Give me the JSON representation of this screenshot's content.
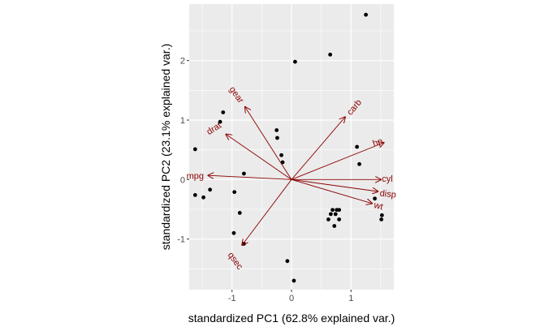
{
  "chart_data": {
    "type": "scatter",
    "subtype": "pca-biplot",
    "title": "",
    "xlabel": "standardized PC1 (62.8% explained var.)",
    "ylabel": "standardized PC2 (23.1% explained var.)",
    "xlim": [
      -1.72,
      1.72
    ],
    "ylim": [
      -1.85,
      2.95
    ],
    "xticks": [
      -1,
      0,
      1
    ],
    "xtick_labels": [
      "-1",
      "0",
      "1"
    ],
    "yticks": [
      -1,
      0,
      1,
      2
    ],
    "ytick_labels": [
      "-1",
      "0",
      "1",
      "2"
    ],
    "panel_background": "#ebebeb",
    "grid_color": "#ffffff",
    "point_color": "#000000",
    "arrow_color": "#8b0000",
    "points": [
      {
        "x": 1.25,
        "y": 2.77
      },
      {
        "x": 0.06,
        "y": 1.98
      },
      {
        "x": 0.65,
        "y": 2.1
      },
      {
        "x": -1.15,
        "y": 1.13
      },
      {
        "x": -1.2,
        "y": 0.97
      },
      {
        "x": -0.25,
        "y": 0.83
      },
      {
        "x": -0.24,
        "y": 0.7
      },
      {
        "x": -1.62,
        "y": 0.51
      },
      {
        "x": -0.17,
        "y": 0.41
      },
      {
        "x": -0.15,
        "y": 0.29
      },
      {
        "x": 1.1,
        "y": 0.55
      },
      {
        "x": 1.14,
        "y": 0.26
      },
      {
        "x": -0.8,
        "y": 0.1
      },
      {
        "x": -1.62,
        "y": -0.26
      },
      {
        "x": -1.48,
        "y": -0.3
      },
      {
        "x": -1.37,
        "y": -0.17
      },
      {
        "x": -0.96,
        "y": -0.21
      },
      {
        "x": 1.4,
        "y": -0.32
      },
      {
        "x": 1.52,
        "y": -0.6
      },
      {
        "x": 1.51,
        "y": -0.67
      },
      {
        "x": 0.69,
        "y": -0.51
      },
      {
        "x": 0.76,
        "y": -0.51
      },
      {
        "x": 0.8,
        "y": -0.51
      },
      {
        "x": 0.66,
        "y": -0.58
      },
      {
        "x": 0.74,
        "y": -0.58
      },
      {
        "x": 0.62,
        "y": -0.67
      },
      {
        "x": 0.8,
        "y": -0.67
      },
      {
        "x": 0.72,
        "y": -0.78
      },
      {
        "x": -0.87,
        "y": -0.56
      },
      {
        "x": -0.97,
        "y": -0.9
      },
      {
        "x": -0.8,
        "y": -1.08
      },
      {
        "x": -0.07,
        "y": -1.37
      },
      {
        "x": 0.04,
        "y": -1.7
      }
    ],
    "loadings": [
      {
        "name": "mpg",
        "x": -1.4,
        "y": 0.07,
        "label_x": -1.62,
        "label_y": 0.05,
        "label_angle": 0
      },
      {
        "name": "cyl",
        "x": 1.5,
        "y": 0.0,
        "label_x": 1.61,
        "label_y": 0.0,
        "label_angle": 0
      },
      {
        "name": "disp",
        "x": 1.45,
        "y": -0.2,
        "label_x": 1.62,
        "label_y": -0.25,
        "label_angle": 6
      },
      {
        "name": "hp",
        "x": 1.55,
        "y": 0.62,
        "label_x": 1.45,
        "label_y": 0.62,
        "label_angle": -20
      },
      {
        "name": "drat",
        "x": -1.1,
        "y": 0.76,
        "label_x": -1.3,
        "label_y": 0.85,
        "label_angle": -32
      },
      {
        "name": "wt",
        "x": 1.35,
        "y": -0.4,
        "label_x": 1.46,
        "label_y": -0.45,
        "label_angle": 15
      },
      {
        "name": "qsec",
        "x": -0.83,
        "y": -1.1,
        "label_x": -0.95,
        "label_y": -1.37,
        "label_angle": 54
      },
      {
        "name": "carb",
        "x": 0.9,
        "y": 1.05,
        "label_x": 1.06,
        "label_y": 1.21,
        "label_angle": -50
      },
      {
        "name": "gear",
        "x": -0.78,
        "y": 1.22,
        "label_x": -0.93,
        "label_y": 1.42,
        "label_angle": 55
      }
    ]
  }
}
